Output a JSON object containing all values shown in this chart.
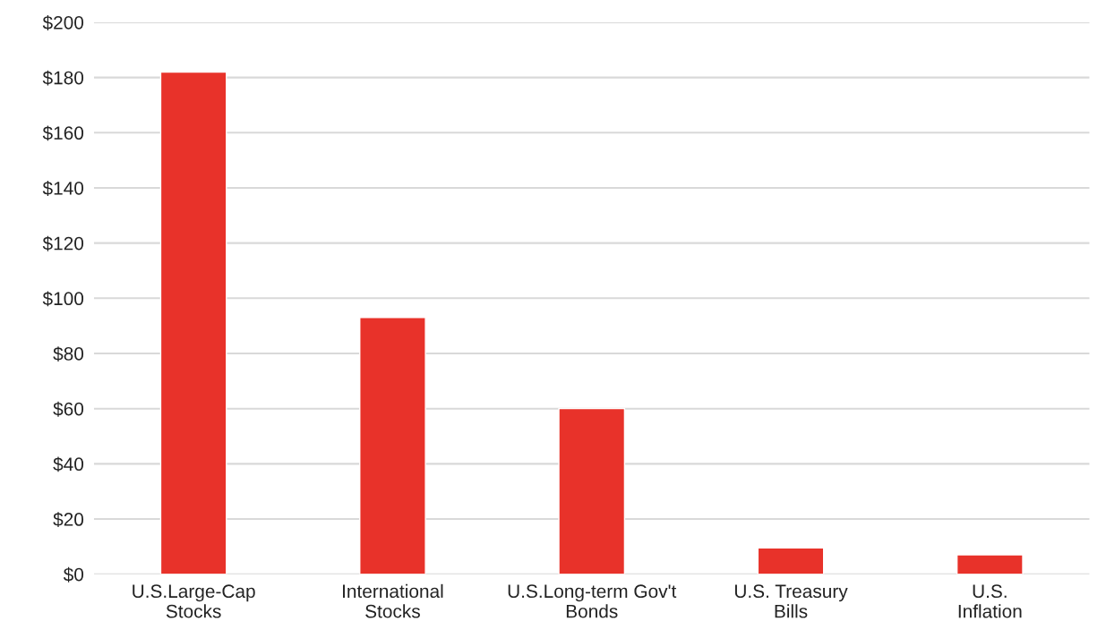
{
  "chart_data": {
    "type": "bar",
    "categories": [
      "U.S.Large-Cap\nStocks",
      "International\nStocks",
      "U.S.Long-term Gov't\nBonds",
      "U.S. Treasury\nBills",
      "U.S.\nInflation"
    ],
    "values": [
      182,
      93,
      60,
      9.5,
      7
    ],
    "color": "#e8322a",
    "ylim": [
      0,
      200
    ],
    "yticks": [
      {
        "value": 0,
        "label": "$0"
      },
      {
        "value": 20,
        "label": "$20"
      },
      {
        "value": 40,
        "label": "$40"
      },
      {
        "value": 60,
        "label": "$60"
      },
      {
        "value": 80,
        "label": "$80"
      },
      {
        "value": 100,
        "label": "$100"
      },
      {
        "value": 120,
        "label": "$120"
      },
      {
        "value": 140,
        "label": "$140"
      },
      {
        "value": 160,
        "label": "$160"
      },
      {
        "value": 180,
        "label": "$180"
      },
      {
        "value": 200,
        "label": "$200"
      }
    ],
    "grid": "y"
  }
}
